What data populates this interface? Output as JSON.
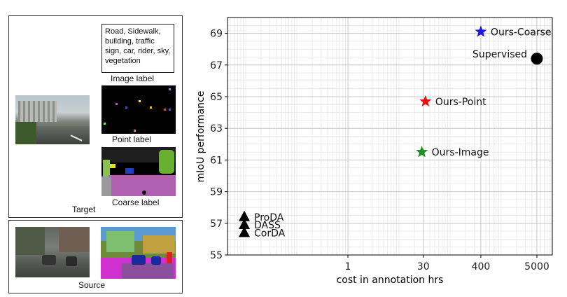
{
  "figure": {
    "target_caption": "Target",
    "source_caption": "Source",
    "image_label_classes": "Road, Sidewalk, building, traffic sign, car, rider, sky, vegetation",
    "image_label_caption": "Image label",
    "point_label_caption": "Point label",
    "coarse_label_caption": "Coarse label"
  },
  "chart_data": {
    "type": "scatter",
    "xlabel": "cost in annotation hrs",
    "ylabel": "mIoU performance",
    "x_scale": "log",
    "x_ticks": [
      1,
      30,
      400,
      5000
    ],
    "y_ticks": [
      55,
      57,
      59,
      61,
      63,
      65,
      67,
      69
    ],
    "ylim": [
      55,
      70
    ],
    "grid": true,
    "points": [
      {
        "label": "Ours-Coarse",
        "x": 400,
        "y": 69.1,
        "marker": "star",
        "color": "#1a1adb"
      },
      {
        "label": "Supervised",
        "x": 5000,
        "y": 67.4,
        "marker": "circle",
        "color": "#000000"
      },
      {
        "label": "Ours-Point",
        "x": 33,
        "y": 64.7,
        "marker": "star",
        "color": "#e01616"
      },
      {
        "label": "Ours-Image",
        "x": 28,
        "y": 61.5,
        "marker": "star",
        "color": "#1f8f1f"
      },
      {
        "label": "ProDA",
        "x": 0,
        "y": 57.4,
        "marker": "triangle",
        "color": "#000000"
      },
      {
        "label": "DASS",
        "x": 0,
        "y": 56.9,
        "marker": "triangle",
        "color": "#000000"
      },
      {
        "label": "CorDA",
        "x": 0,
        "y": 56.4,
        "marker": "triangle",
        "color": "#000000"
      }
    ]
  }
}
